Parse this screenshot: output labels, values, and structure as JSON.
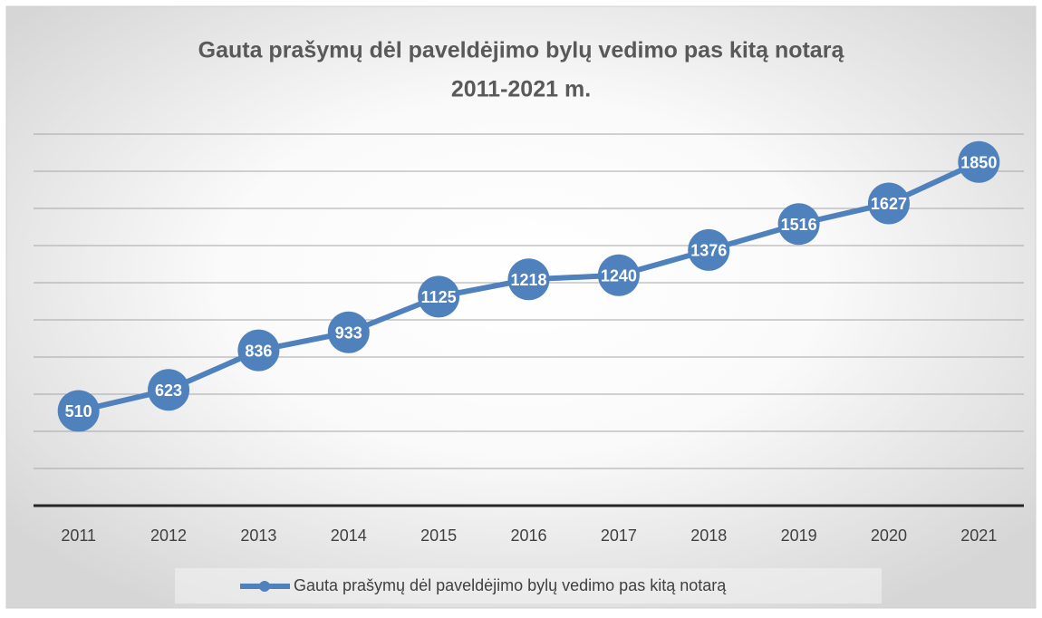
{
  "chart_data": {
    "type": "line",
    "title": [
      "Gauta prašymų dėl paveldėjimo bylų vedimo pas kitą notarą",
      "2011-2021 m."
    ],
    "categories": [
      "2011",
      "2012",
      "2013",
      "2014",
      "2015",
      "2016",
      "2017",
      "2018",
      "2019",
      "2020",
      "2021"
    ],
    "series": [
      {
        "name": "Gauta prašymų dėl paveldėjimo bylų vedimo pas kitą notarą",
        "color": "#4f81bd",
        "values": [
          510,
          623,
          836,
          933,
          1125,
          1218,
          1240,
          1376,
          1516,
          1627,
          1850
        ]
      }
    ],
    "ylim": [
      0,
      2000
    ],
    "yticks": [
      0,
      200,
      400,
      600,
      800,
      1000,
      1200,
      1400,
      1600,
      1800,
      2000
    ],
    "grid": true,
    "legend": "bottom"
  }
}
